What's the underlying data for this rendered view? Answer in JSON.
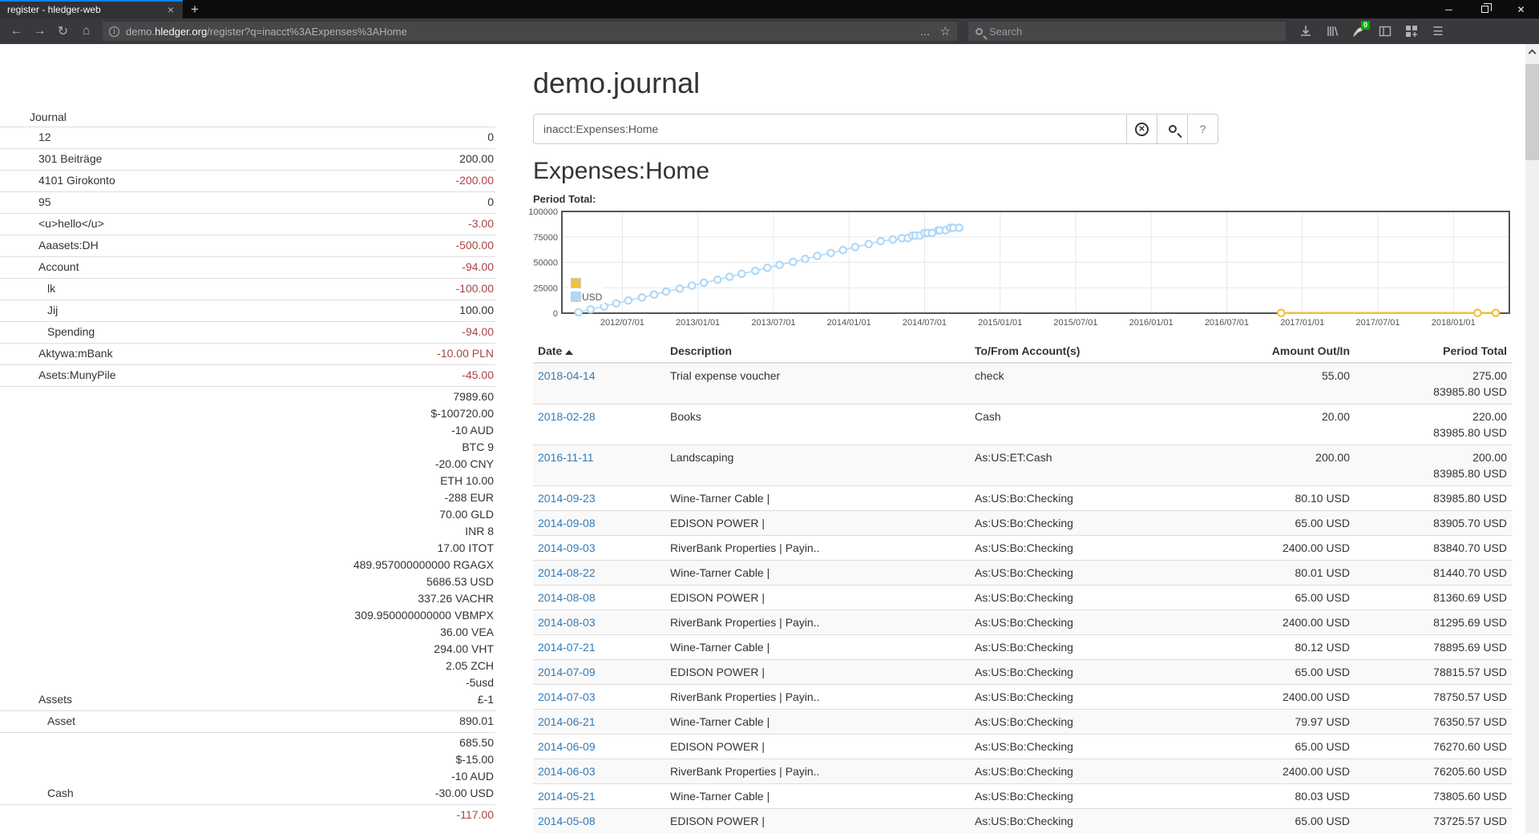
{
  "browser": {
    "tab_title": "register - hledger-web",
    "url_prefix": "demo.",
    "url_host": "hledger.org",
    "url_path": "/register?q=inacct%3AExpenses%3AHome",
    "search_placeholder": "Search",
    "extension_badge": "0",
    "overflow_dots": "…",
    "bookmark_star": "☆",
    "menu_glyph": "☰",
    "back_glyph": "←",
    "forward_glyph": "→",
    "reload_glyph": "↻",
    "home_glyph": "⌂",
    "newtab_glyph": "+",
    "tab_close_glyph": "×",
    "minimize_glyph": "─",
    "close_glyph": "✕",
    "info_glyph": "i"
  },
  "sidebar": {
    "journal_label": "Journal",
    "accounts": [
      {
        "name": "12",
        "depth": 1,
        "lines": [
          {
            "t": "0",
            "neg": false
          }
        ]
      },
      {
        "name": "301 Beiträge",
        "depth": 1,
        "lines": [
          {
            "t": "200.00",
            "neg": false
          }
        ]
      },
      {
        "name": "4101 Girokonto",
        "depth": 1,
        "lines": [
          {
            "t": "-200.00",
            "neg": true
          }
        ]
      },
      {
        "name": "95",
        "depth": 1,
        "lines": [
          {
            "t": "0",
            "neg": false
          }
        ]
      },
      {
        "name": "<u>hello</u>",
        "depth": 1,
        "lines": [
          {
            "t": "-3.00",
            "neg": true
          }
        ]
      },
      {
        "name": "Aaasets:DH",
        "depth": 1,
        "lines": [
          {
            "t": "-500.00",
            "neg": true
          }
        ]
      },
      {
        "name": "Account",
        "depth": 1,
        "lines": [
          {
            "t": "-94.00",
            "neg": true
          }
        ]
      },
      {
        "name": "lk",
        "depth": 2,
        "lines": [
          {
            "t": "-100.00",
            "neg": true
          }
        ]
      },
      {
        "name": "Jij",
        "depth": 2,
        "lines": [
          {
            "t": "100.00",
            "neg": false
          }
        ]
      },
      {
        "name": "Spending",
        "depth": 2,
        "lines": [
          {
            "t": "-94.00",
            "neg": true
          }
        ]
      },
      {
        "name": "Aktywa:mBank",
        "depth": 1,
        "lines": [
          {
            "t": "-10.00 PLN",
            "neg": true
          }
        ]
      },
      {
        "name": "Asets:MunyPile",
        "depth": 1,
        "lines": [
          {
            "t": "-45.00",
            "neg": true
          }
        ]
      },
      {
        "name": "Assets",
        "depth": 1,
        "lines": [
          {
            "t": "7989.60",
            "neg": false
          },
          {
            "t": "$-100720.00",
            "neg": false
          },
          {
            "t": "-10 AUD",
            "neg": false
          },
          {
            "t": "BTC 9",
            "neg": false
          },
          {
            "t": "-20.00 CNY",
            "neg": false
          },
          {
            "t": "ETH 10.00",
            "neg": false
          },
          {
            "t": "-288 EUR",
            "neg": false
          },
          {
            "t": "70.00 GLD",
            "neg": false
          },
          {
            "t": "INR 8",
            "neg": false
          },
          {
            "t": "17.00 ITOT",
            "neg": false
          },
          {
            "t": "489.957000000000 RGAGX",
            "neg": false
          },
          {
            "t": "5686.53 USD",
            "neg": false
          },
          {
            "t": "337.26 VACHR",
            "neg": false
          },
          {
            "t": "309.950000000000 VBMPX",
            "neg": false
          },
          {
            "t": "36.00 VEA",
            "neg": false
          },
          {
            "t": "294.00 VHT",
            "neg": false
          },
          {
            "t": "2.05 ZCH",
            "neg": false
          },
          {
            "t": "-5usd",
            "neg": false
          },
          {
            "t": "£-1",
            "neg": false
          }
        ]
      },
      {
        "name": "Asset",
        "depth": 2,
        "lines": [
          {
            "t": "890.01",
            "neg": false
          }
        ]
      },
      {
        "name": "Cash",
        "depth": 2,
        "lines": [
          {
            "t": "685.50",
            "neg": false
          },
          {
            "t": "$-15.00",
            "neg": false
          },
          {
            "t": "-10 AUD",
            "neg": false
          },
          {
            "t": "-30.00 USD",
            "neg": false
          }
        ]
      },
      {
        "name": "",
        "depth": 2,
        "lines": [
          {
            "t": "-117.00",
            "neg": true
          }
        ]
      }
    ]
  },
  "main": {
    "title": "demo.journal",
    "query": "inacct:Expenses:Home",
    "heading": "Expenses:Home",
    "period_total_label": "Period Total:",
    "help_label": "?"
  },
  "chart_data": {
    "type": "line",
    "title": "Period Total:",
    "x_axis": {
      "range": [
        2012.1,
        2018.37
      ],
      "tick_positions": [
        2012.5,
        2013.0,
        2013.5,
        2014.0,
        2014.5,
        2015.0,
        2015.5,
        2016.0,
        2016.5,
        2017.0,
        2017.5,
        2018.0
      ],
      "ticks": [
        "2012/07/01",
        "2013/01/01",
        "2013/07/01",
        "2014/01/01",
        "2014/07/01",
        "2015/01/01",
        "2015/07/01",
        "2016/01/01",
        "2016/07/01",
        "2017/01/01",
        "2017/07/01",
        "2018/01/01"
      ]
    },
    "y_axis": {
      "range": [
        0,
        100000
      ],
      "ticks": [
        0,
        25000,
        50000,
        75000,
        100000
      ]
    },
    "legend": [
      {
        "label": "",
        "color": "#edc240"
      },
      {
        "label": "USD",
        "color": "#afd8f8"
      }
    ],
    "zero_line_color": "#cb6a6a",
    "grid": true,
    "legend_position": "inside-left",
    "series": [
      {
        "name": "",
        "color": "#edc240",
        "line_width": 2.5,
        "points": [
          [
            2016.86,
            200
          ],
          [
            2018.16,
            220
          ],
          [
            2018.28,
            275
          ]
        ]
      },
      {
        "name": "USD",
        "color": "#afd8f8",
        "line_width": 1.5,
        "points": [
          [
            2012.21,
            800
          ],
          [
            2012.29,
            3700
          ],
          [
            2012.38,
            6600
          ],
          [
            2012.46,
            9550
          ],
          [
            2012.54,
            12470
          ],
          [
            2012.63,
            15390
          ],
          [
            2012.71,
            18300
          ],
          [
            2012.79,
            21220
          ],
          [
            2012.88,
            24140
          ],
          [
            2012.96,
            27050
          ],
          [
            2013.04,
            29970
          ],
          [
            2013.13,
            32890
          ],
          [
            2013.21,
            35800
          ],
          [
            2013.29,
            38720
          ],
          [
            2013.38,
            41640
          ],
          [
            2013.46,
            44560
          ],
          [
            2013.54,
            47470
          ],
          [
            2013.63,
            50390
          ],
          [
            2013.71,
            53310
          ],
          [
            2013.79,
            56220
          ],
          [
            2013.88,
            59140
          ],
          [
            2013.96,
            62060
          ],
          [
            2014.04,
            64970
          ],
          [
            2014.13,
            67890
          ],
          [
            2014.21,
            70810
          ],
          [
            2014.29,
            72300
          ],
          [
            2014.35,
            73725.57
          ],
          [
            2014.39,
            73805.6
          ],
          [
            2014.42,
            76205.6
          ],
          [
            2014.44,
            76270.6
          ],
          [
            2014.47,
            76350.57
          ],
          [
            2014.5,
            78750.57
          ],
          [
            2014.52,
            78815.57
          ],
          [
            2014.55,
            78895.69
          ],
          [
            2014.59,
            81295.69
          ],
          [
            2014.6,
            81360.69
          ],
          [
            2014.64,
            81440.7
          ],
          [
            2014.67,
            83840.7
          ],
          [
            2014.69,
            83905.7
          ],
          [
            2014.73,
            83985.8
          ]
        ]
      }
    ]
  },
  "table": {
    "headers": [
      "Date",
      "Description",
      "To/From Account(s)",
      "Amount Out/In",
      "Period Total"
    ],
    "rows": [
      {
        "date": "2018-04-14",
        "desc": "Trial expense voucher",
        "acct": "check",
        "amount": "55.00",
        "totals": [
          "275.00",
          "83985.80 USD"
        ]
      },
      {
        "date": "2018-02-28",
        "desc": "Books",
        "acct": "Cash",
        "amount": "20.00",
        "totals": [
          "220.00",
          "83985.80 USD"
        ]
      },
      {
        "date": "2016-11-11",
        "desc": "Landscaping",
        "acct": "As:US:ET:Cash",
        "amount": "200.00",
        "totals": [
          "200.00",
          "83985.80 USD"
        ]
      },
      {
        "date": "2014-09-23",
        "desc": "Wine-Tarner Cable |",
        "acct": "As:US:Bo:Checking",
        "amount": "80.10 USD",
        "totals": [
          "83985.80 USD"
        ]
      },
      {
        "date": "2014-09-08",
        "desc": "EDISON POWER |",
        "acct": "As:US:Bo:Checking",
        "amount": "65.00 USD",
        "totals": [
          "83905.70 USD"
        ]
      },
      {
        "date": "2014-09-03",
        "desc": "RiverBank Properties | Payin..",
        "acct": "As:US:Bo:Checking",
        "amount": "2400.00 USD",
        "totals": [
          "83840.70 USD"
        ]
      },
      {
        "date": "2014-08-22",
        "desc": "Wine-Tarner Cable |",
        "acct": "As:US:Bo:Checking",
        "amount": "80.01 USD",
        "totals": [
          "81440.70 USD"
        ]
      },
      {
        "date": "2014-08-08",
        "desc": "EDISON POWER |",
        "acct": "As:US:Bo:Checking",
        "amount": "65.00 USD",
        "totals": [
          "81360.69 USD"
        ]
      },
      {
        "date": "2014-08-03",
        "desc": "RiverBank Properties | Payin..",
        "acct": "As:US:Bo:Checking",
        "amount": "2400.00 USD",
        "totals": [
          "81295.69 USD"
        ]
      },
      {
        "date": "2014-07-21",
        "desc": "Wine-Tarner Cable |",
        "acct": "As:US:Bo:Checking",
        "amount": "80.12 USD",
        "totals": [
          "78895.69 USD"
        ]
      },
      {
        "date": "2014-07-09",
        "desc": "EDISON POWER |",
        "acct": "As:US:Bo:Checking",
        "amount": "65.00 USD",
        "totals": [
          "78815.57 USD"
        ]
      },
      {
        "date": "2014-07-03",
        "desc": "RiverBank Properties | Payin..",
        "acct": "As:US:Bo:Checking",
        "amount": "2400.00 USD",
        "totals": [
          "78750.57 USD"
        ]
      },
      {
        "date": "2014-06-21",
        "desc": "Wine-Tarner Cable |",
        "acct": "As:US:Bo:Checking",
        "amount": "79.97 USD",
        "totals": [
          "76350.57 USD"
        ]
      },
      {
        "date": "2014-06-09",
        "desc": "EDISON POWER |",
        "acct": "As:US:Bo:Checking",
        "amount": "65.00 USD",
        "totals": [
          "76270.60 USD"
        ]
      },
      {
        "date": "2014-06-03",
        "desc": "RiverBank Properties | Payin..",
        "acct": "As:US:Bo:Checking",
        "amount": "2400.00 USD",
        "totals": [
          "76205.60 USD"
        ]
      },
      {
        "date": "2014-05-21",
        "desc": "Wine-Tarner Cable |",
        "acct": "As:US:Bo:Checking",
        "amount": "80.03 USD",
        "totals": [
          "73805.60 USD"
        ]
      },
      {
        "date": "2014-05-08",
        "desc": "EDISON POWER |",
        "acct": "As:US:Bo:Checking",
        "amount": "65.00 USD",
        "totals": [
          "73725.57 USD"
        ]
      }
    ]
  }
}
